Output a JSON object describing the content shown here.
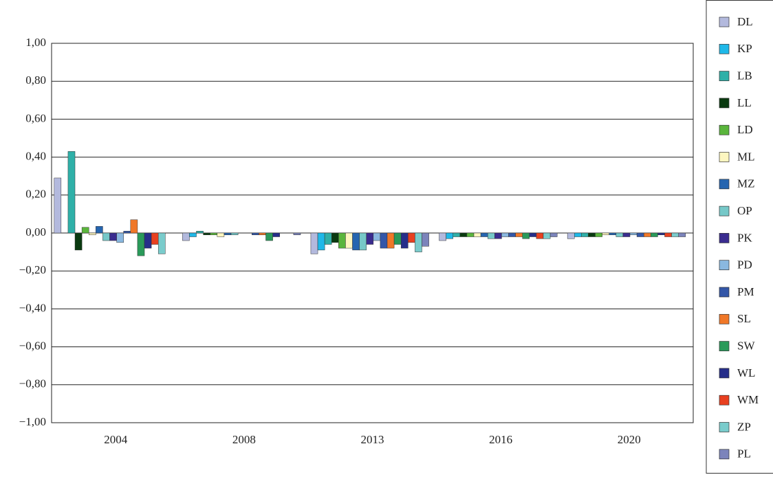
{
  "chart_data": {
    "type": "bar",
    "categories": [
      "2004",
      "2008",
      "2013",
      "2016",
      "2020"
    ],
    "series": [
      {
        "name": "DL",
        "color": "#b3b9dd",
        "values": [
          0.29,
          -0.04,
          -0.11,
          -0.04,
          -0.03
        ]
      },
      {
        "name": "KP",
        "color": "#1fb8e8",
        "values": [
          0,
          -0.02,
          -0.09,
          -0.03,
          -0.02
        ]
      },
      {
        "name": "LB",
        "color": "#2fb0a8",
        "values": [
          0.43,
          0.01,
          -0.06,
          -0.02,
          -0.02
        ]
      },
      {
        "name": "LL",
        "color": "#0a3a10",
        "values": [
          -0.09,
          -0.01,
          -0.05,
          -0.02,
          -0.02
        ]
      },
      {
        "name": "LD",
        "color": "#5ab53c",
        "values": [
          0.03,
          -0.01,
          -0.08,
          -0.02,
          -0.02
        ]
      },
      {
        "name": "ML",
        "color": "#fdf6c0",
        "values": [
          -0.01,
          -0.02,
          -0.08,
          -0.02,
          -0.01
        ]
      },
      {
        "name": "MZ",
        "color": "#2565b0",
        "values": [
          0.035,
          -0.01,
          -0.09,
          -0.02,
          -0.01
        ]
      },
      {
        "name": "OP",
        "color": "#76c8c8",
        "values": [
          -0.04,
          -0.01,
          -0.09,
          -0.03,
          -0.02
        ]
      },
      {
        "name": "PK",
        "color": "#3a2c8f",
        "values": [
          -0.04,
          0,
          -0.06,
          -0.03,
          -0.02
        ]
      },
      {
        "name": "PD",
        "color": "#8ab8e0",
        "values": [
          -0.05,
          0,
          -0.04,
          -0.02,
          -0.01
        ]
      },
      {
        "name": "PM",
        "color": "#3457a8",
        "values": [
          0.01,
          -0.01,
          -0.08,
          -0.02,
          -0.02
        ]
      },
      {
        "name": "SL",
        "color": "#f07828",
        "values": [
          0.07,
          -0.01,
          -0.08,
          -0.02,
          -0.02
        ]
      },
      {
        "name": "SW",
        "color": "#2a9a5a",
        "values": [
          -0.12,
          -0.04,
          -0.06,
          -0.03,
          -0.02
        ]
      },
      {
        "name": "WL",
        "color": "#262e8a",
        "values": [
          -0.08,
          -0.02,
          -0.08,
          -0.02,
          -0.01
        ]
      },
      {
        "name": "WM",
        "color": "#e84020",
        "values": [
          -0.06,
          0,
          -0.05,
          -0.03,
          -0.02
        ]
      },
      {
        "name": "ZP",
        "color": "#7acccc",
        "values": [
          -0.11,
          0,
          -0.1,
          -0.03,
          -0.02
        ]
      },
      {
        "name": "PL",
        "color": "#7c84bb",
        "values": [
          0,
          -0.01,
          -0.07,
          -0.02,
          -0.02
        ]
      }
    ],
    "ylim": [
      -1,
      1
    ],
    "yticks": [
      {
        "value": -1,
        "label": "−1,00"
      },
      {
        "value": -0.8,
        "label": "−0,80"
      },
      {
        "value": -0.6,
        "label": "−0,60"
      },
      {
        "value": -0.4,
        "label": "−0,40"
      },
      {
        "value": -0.2,
        "label": "−0,20"
      },
      {
        "value": 0,
        "label": "0,00"
      },
      {
        "value": 0.2,
        "label": "0,20"
      },
      {
        "value": 0.4,
        "label": "0,40"
      },
      {
        "value": 0.6,
        "label": "0,60"
      },
      {
        "value": 0.8,
        "label": "0,80"
      },
      {
        "value": 1,
        "label": "1,00"
      }
    ],
    "grid": true,
    "legend": "right"
  }
}
